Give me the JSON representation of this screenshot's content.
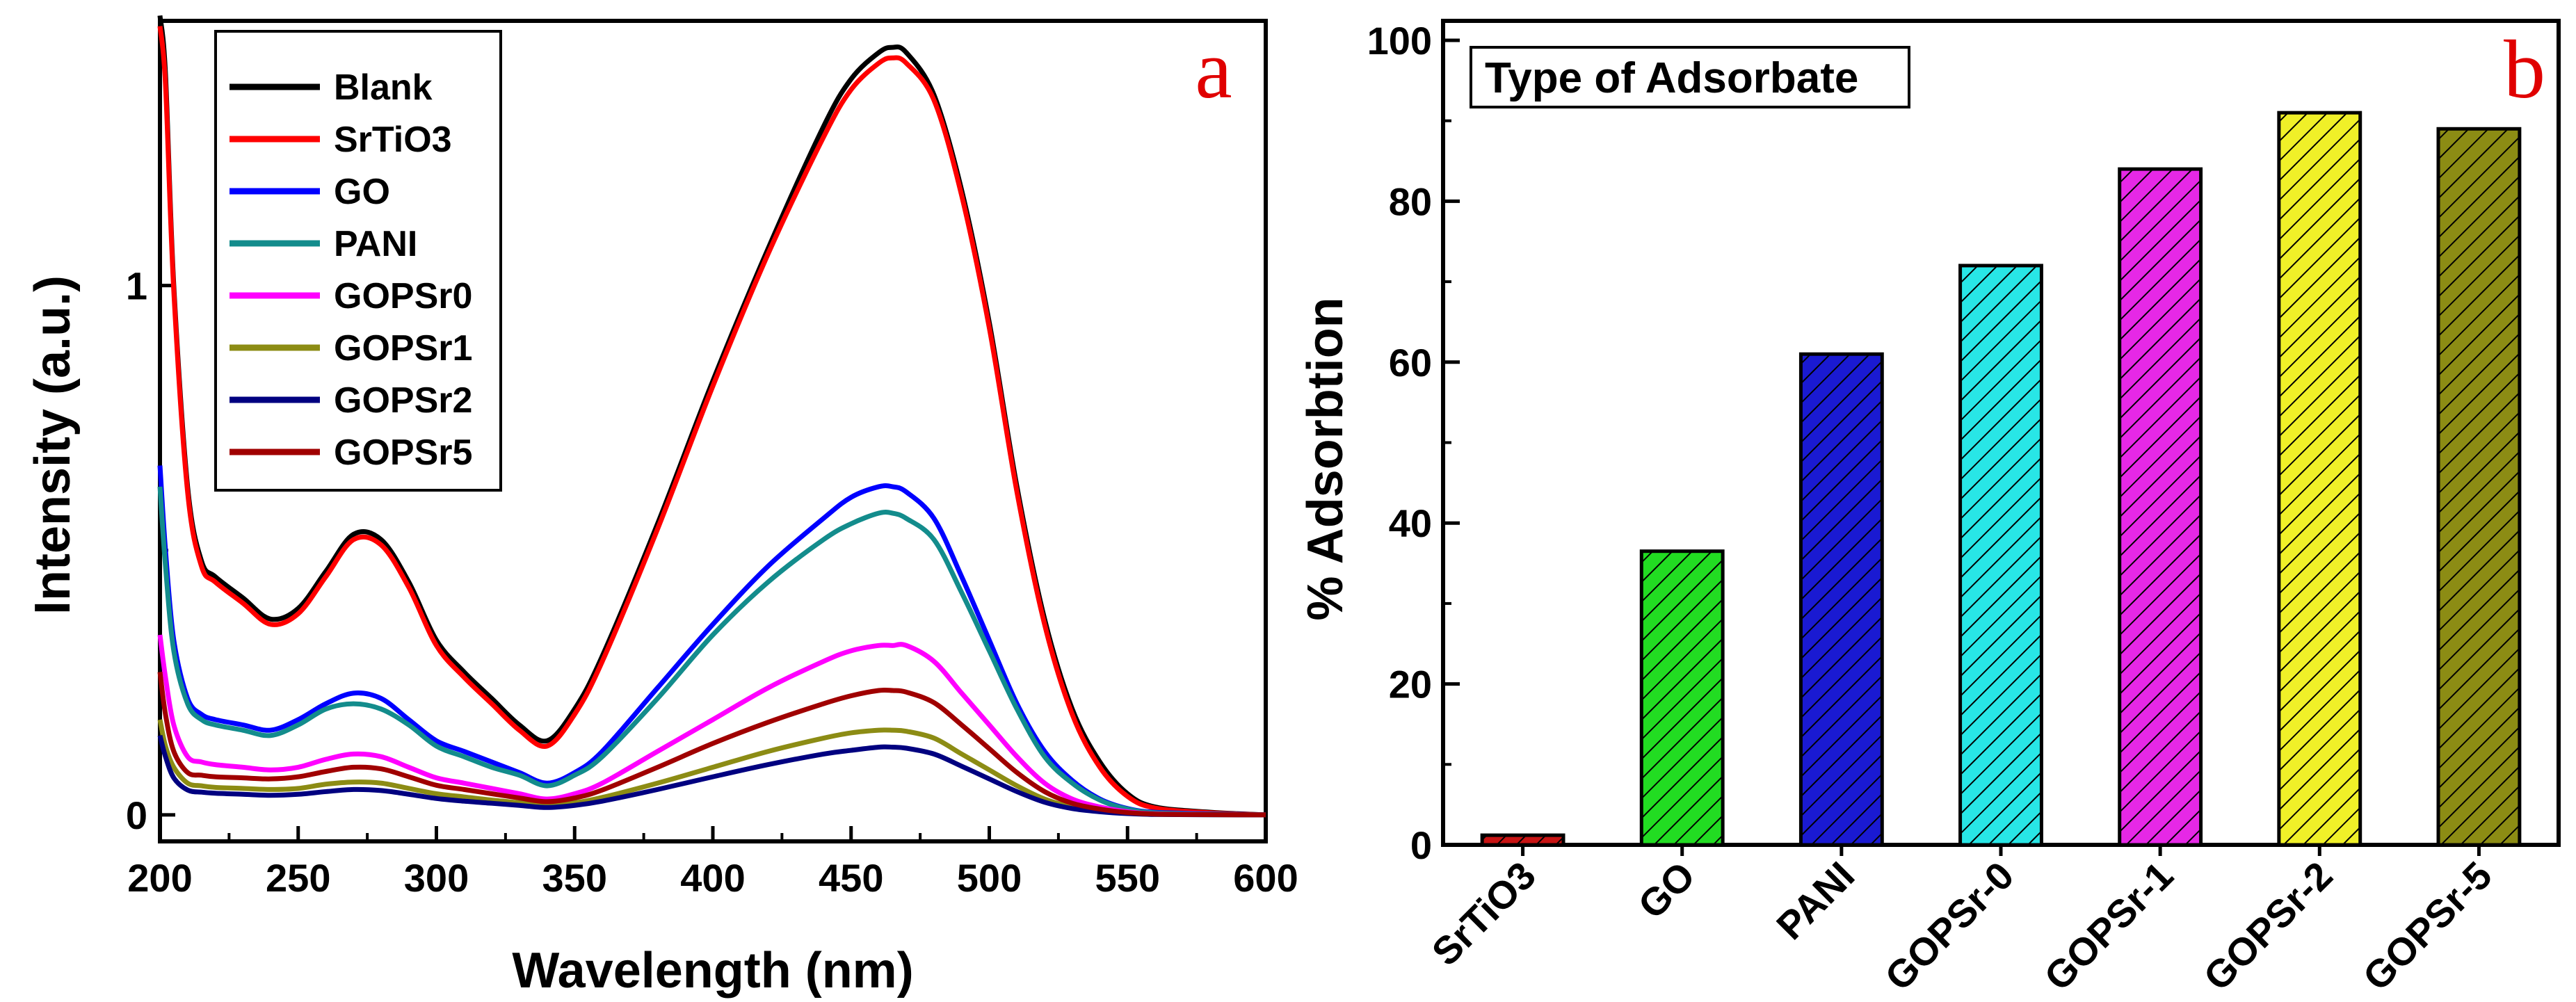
{
  "chart_data": [
    {
      "panel": "a",
      "type": "line",
      "xlabel": "Wavelength (nm)",
      "ylabel": "Intensity (a.u.)",
      "xlim": [
        200,
        600
      ],
      "ylim": [
        -0.05,
        1.5
      ],
      "xticks": [
        "200",
        "250",
        "300",
        "350",
        "400",
        "450",
        "500",
        "550",
        "600"
      ],
      "yticks": [
        "0",
        "1"
      ],
      "x": [
        200,
        202,
        205,
        210,
        215,
        220,
        230,
        240,
        250,
        260,
        270,
        280,
        290,
        300,
        310,
        320,
        330,
        340,
        350,
        360,
        380,
        400,
        420,
        440,
        450,
        460,
        465,
        470,
        480,
        490,
        500,
        510,
        520,
        530,
        540,
        550,
        560,
        580,
        600
      ],
      "series": [
        {
          "name": "Blank",
          "color": "#000000",
          "values": [
            1.51,
            1.4,
            1.0,
            0.62,
            0.48,
            0.45,
            0.41,
            0.37,
            0.39,
            0.46,
            0.53,
            0.52,
            0.44,
            0.33,
            0.27,
            0.22,
            0.17,
            0.14,
            0.2,
            0.3,
            0.55,
            0.82,
            1.07,
            1.3,
            1.39,
            1.44,
            1.45,
            1.44,
            1.36,
            1.18,
            0.93,
            0.62,
            0.37,
            0.2,
            0.1,
            0.04,
            0.015,
            0.005,
            0.0
          ]
        },
        {
          "name": "SrTiO3",
          "color": "#ff0000",
          "values": [
            1.49,
            1.38,
            0.99,
            0.61,
            0.47,
            0.44,
            0.4,
            0.36,
            0.38,
            0.45,
            0.52,
            0.51,
            0.43,
            0.32,
            0.26,
            0.21,
            0.16,
            0.13,
            0.19,
            0.29,
            0.54,
            0.81,
            1.06,
            1.28,
            1.37,
            1.42,
            1.43,
            1.42,
            1.35,
            1.17,
            0.92,
            0.61,
            0.36,
            0.19,
            0.09,
            0.035,
            0.013,
            0.004,
            0.0
          ]
        },
        {
          "name": "GO",
          "color": "#0000ff",
          "values": [
            0.66,
            0.5,
            0.33,
            0.22,
            0.19,
            0.18,
            0.17,
            0.16,
            0.18,
            0.21,
            0.23,
            0.22,
            0.18,
            0.14,
            0.12,
            0.1,
            0.08,
            0.06,
            0.08,
            0.12,
            0.24,
            0.36,
            0.47,
            0.56,
            0.6,
            0.62,
            0.62,
            0.61,
            0.56,
            0.45,
            0.33,
            0.21,
            0.12,
            0.065,
            0.03,
            0.012,
            0.005,
            0.002,
            0.0
          ]
        },
        {
          "name": "PANI",
          "color": "#138c8c",
          "values": [
            0.62,
            0.47,
            0.31,
            0.21,
            0.18,
            0.17,
            0.16,
            0.15,
            0.17,
            0.2,
            0.21,
            0.2,
            0.17,
            0.13,
            0.11,
            0.09,
            0.075,
            0.055,
            0.075,
            0.11,
            0.22,
            0.34,
            0.44,
            0.52,
            0.55,
            0.57,
            0.57,
            0.56,
            0.52,
            0.42,
            0.31,
            0.2,
            0.11,
            0.06,
            0.028,
            0.011,
            0.004,
            0.0015,
            0.0
          ]
        },
        {
          "name": "GOPSr0",
          "color": "#ff00ff",
          "values": [
            0.34,
            0.26,
            0.17,
            0.11,
            0.1,
            0.095,
            0.09,
            0.085,
            0.09,
            0.105,
            0.115,
            0.11,
            0.09,
            0.07,
            0.06,
            0.05,
            0.04,
            0.03,
            0.04,
            0.06,
            0.12,
            0.18,
            0.24,
            0.29,
            0.31,
            0.32,
            0.32,
            0.32,
            0.29,
            0.23,
            0.17,
            0.11,
            0.06,
            0.03,
            0.015,
            0.006,
            0.002,
            0.0008,
            0.0
          ]
        },
        {
          "name": "GOPSr1",
          "color": "#8c8c14",
          "values": [
            0.18,
            0.13,
            0.09,
            0.06,
            0.055,
            0.052,
            0.05,
            0.048,
            0.05,
            0.058,
            0.062,
            0.06,
            0.05,
            0.04,
            0.034,
            0.028,
            0.023,
            0.018,
            0.023,
            0.033,
            0.06,
            0.09,
            0.12,
            0.145,
            0.155,
            0.16,
            0.16,
            0.158,
            0.145,
            0.115,
            0.085,
            0.055,
            0.03,
            0.015,
            0.007,
            0.003,
            0.001,
            0.0004,
            0.0
          ]
        },
        {
          "name": "GOPSr2",
          "color": "#000080",
          "values": [
            0.15,
            0.11,
            0.07,
            0.047,
            0.043,
            0.041,
            0.039,
            0.037,
            0.039,
            0.044,
            0.048,
            0.046,
            0.039,
            0.031,
            0.026,
            0.022,
            0.018,
            0.014,
            0.018,
            0.026,
            0.048,
            0.072,
            0.095,
            0.115,
            0.122,
            0.128,
            0.128,
            0.126,
            0.115,
            0.092,
            0.068,
            0.044,
            0.024,
            0.012,
            0.006,
            0.0025,
            0.0009,
            0.0003,
            0.0
          ]
        },
        {
          "name": "GOPSr5",
          "color": "#a00000",
          "values": [
            0.27,
            0.19,
            0.12,
            0.08,
            0.075,
            0.072,
            0.07,
            0.068,
            0.072,
            0.082,
            0.09,
            0.087,
            0.072,
            0.056,
            0.048,
            0.04,
            0.032,
            0.025,
            0.032,
            0.047,
            0.09,
            0.135,
            0.175,
            0.21,
            0.225,
            0.235,
            0.235,
            0.232,
            0.212,
            0.17,
            0.125,
            0.08,
            0.044,
            0.022,
            0.011,
            0.0045,
            0.0016,
            0.0005,
            0.0
          ]
        }
      ]
    },
    {
      "panel": "b",
      "type": "bar",
      "title": "Type of Adsorbate",
      "xlabel": "",
      "ylabel": "% Adsorbtion",
      "ylim": [
        0,
        100
      ],
      "yticks": [
        "0",
        "20",
        "40",
        "60",
        "80",
        "100"
      ],
      "categories": [
        "SrTiO3",
        "GO",
        "PANI",
        "GOPSr-0",
        "GOPSr-1",
        "GOPSr-2",
        "GOPSr-5"
      ],
      "values": [
        1.2,
        36.5,
        61,
        72,
        84,
        91,
        89
      ],
      "colors": [
        "#c81414",
        "#22dc22",
        "#1a1ad2",
        "#28e6e6",
        "#e628e6",
        "#f0f028",
        "#8c8c14"
      ]
    }
  ]
}
